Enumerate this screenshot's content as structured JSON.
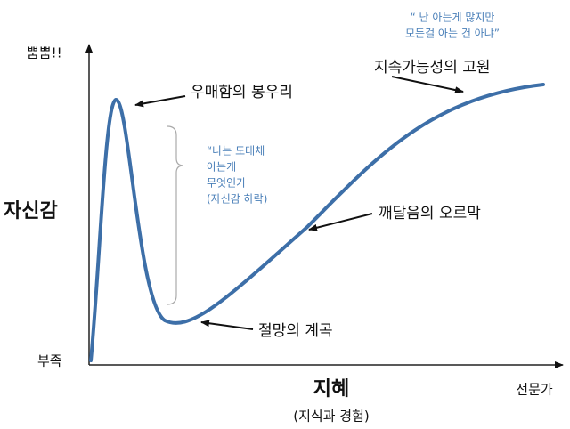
{
  "y_axis": {
    "top": "뿜뿜!!",
    "label": "자신감",
    "bottom": "부족"
  },
  "x_axis": {
    "label": "지혜",
    "sublabel": "(지식과 경험)",
    "end": "전문가"
  },
  "stages": [
    "우매함의 봉우리",
    "절망의 계곡",
    "깨달음의 오르막",
    "지속가능성의 고원"
  ],
  "quotes": [
    {
      "lines": [
        "“ 난 아는게 많지만",
        "모든걸 아는 건 아냐”"
      ]
    },
    {
      "lines": [
        "“나는 도대체",
        "아는게",
        "무엇인가",
        "(자신감 하락)"
      ]
    }
  ]
}
